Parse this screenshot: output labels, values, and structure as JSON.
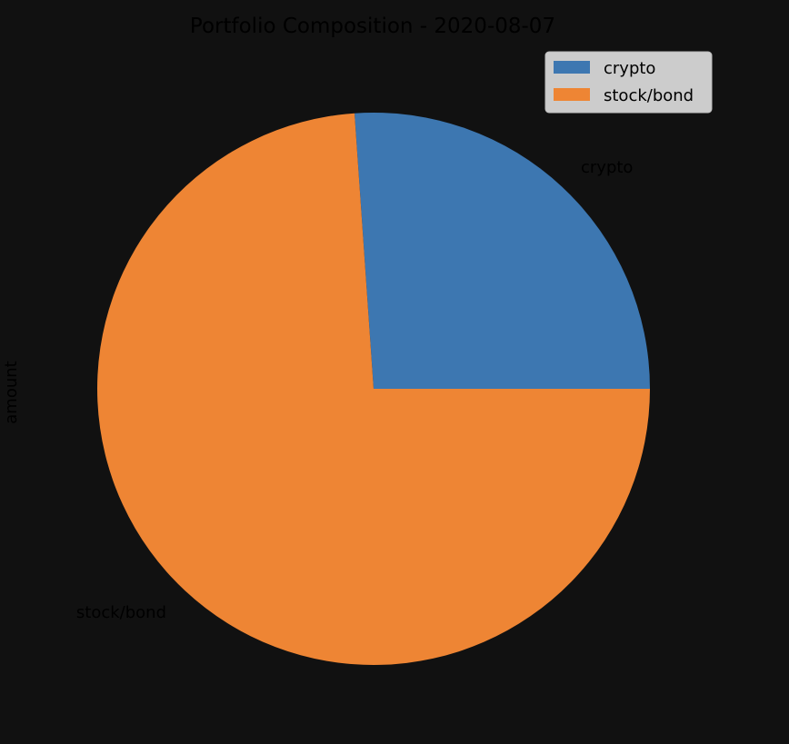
{
  "background_color": "#111111",
  "chart_data": {
    "type": "pie",
    "title": "Portfolio Composition - 2020-08-07",
    "ylabel": "amount",
    "categories": [
      "crypto",
      "stock/bond"
    ],
    "values": [
      26.1,
      73.9
    ],
    "colors": [
      "#3d77b1",
      "#ee8534"
    ],
    "start_angle_deg": 0,
    "direction": "counterclockwise",
    "legend": {
      "placement": "top-right",
      "entries": [
        "crypto",
        "stock/bond"
      ],
      "background_color": "#cccccc",
      "edge_color": "#bdbdbd"
    }
  }
}
